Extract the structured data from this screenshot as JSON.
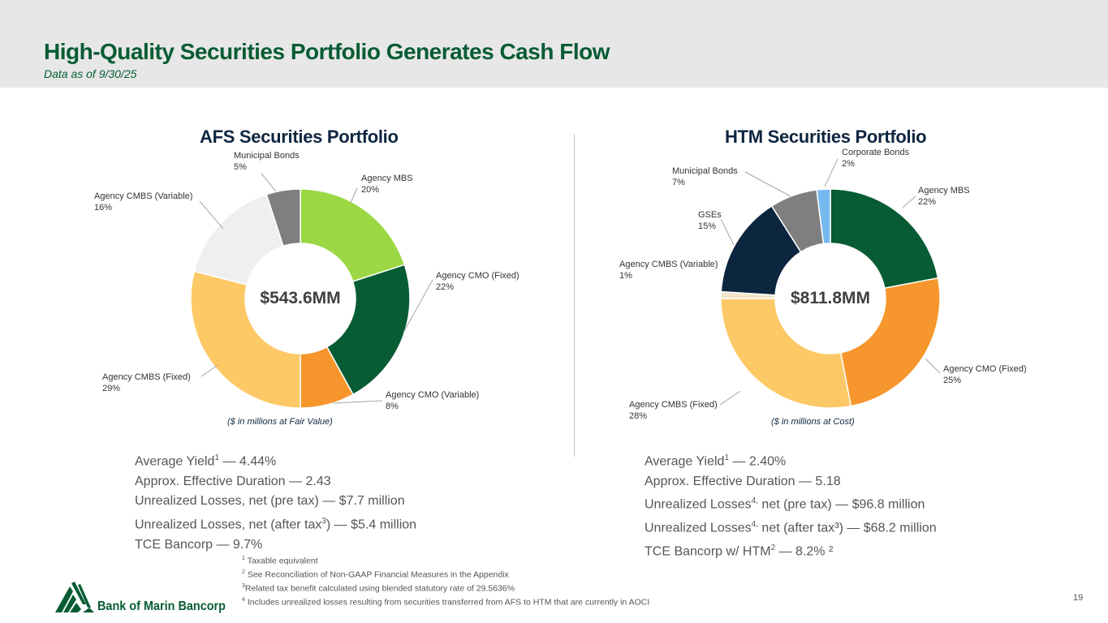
{
  "header": {
    "title": "High-Quality Securities Portfolio Generates Cash Flow",
    "subtitle": "Data as of 9/30/25"
  },
  "chart_data": [
    {
      "type": "pie",
      "title": "AFS Securities Portfolio",
      "center_label": "$543.6MM",
      "note": "($ in millions at Fair Value)",
      "categories": [
        "Agency MBS",
        "Agency CMO (Fixed)",
        "Agency CMO (Variable)",
        "Agency CMBS (Fixed)",
        "Agency CMBS (Variable)",
        "Municipal Bonds"
      ],
      "values": [
        20,
        22,
        8,
        29,
        16,
        5
      ],
      "value_labels": [
        "20%",
        "22%",
        "8%",
        "29%",
        "16%",
        "5%"
      ],
      "colors": [
        "#9bd844",
        "#075c33",
        "#f7962c",
        "#fdc966",
        "#efefef",
        "#7f7f7f"
      ]
    },
    {
      "type": "pie",
      "title": "HTM Securities Portfolio",
      "center_label": "$811.8MM",
      "note": "($ in millions at Cost)",
      "categories": [
        "Agency MBS",
        "Agency CMO (Fixed)",
        "Agency CMBS (Fixed)",
        "Agency CMBS (Variable)",
        "GSEs",
        "Municipal Bonds",
        "Corporate Bonds"
      ],
      "values": [
        22,
        25,
        28,
        1,
        15,
        7,
        2
      ],
      "value_labels": [
        "22%",
        "25%",
        "28%",
        "1%",
        "15%",
        "7%",
        "2%"
      ],
      "colors": [
        "#075c33",
        "#f7962c",
        "#fdc966",
        "#f3e6c9",
        "#0d2640",
        "#7f7f7f",
        "#76b9f0"
      ]
    }
  ],
  "afs_stats": [
    {
      "text": "Average Yield",
      "sup": "1",
      "rest": " — 4.44%"
    },
    {
      "text": "Approx. Effective Duration — 2.43",
      "sup": "",
      "rest": ""
    },
    {
      "text": "Unrealized Losses, net (pre tax) — $7.7 million",
      "sup": "",
      "rest": ""
    },
    {
      "text": "Unrealized Losses, net (after tax",
      "sup": "3",
      "rest": ") — $5.4 million"
    },
    {
      "text": "TCE Bancorp — 9.7%",
      "sup": "",
      "rest": ""
    }
  ],
  "htm_stats": [
    {
      "text": "Average Yield",
      "sup": "1",
      "rest": "  — 2.40%"
    },
    {
      "text": "Approx. Effective Duration — 5.18",
      "sup": "",
      "rest": ""
    },
    {
      "text": "Unrealized Losses",
      "sup": "4,",
      "rest": " net (pre tax) — $96.8 million"
    },
    {
      "text": "Unrealized Losses",
      "sup": "4,",
      "rest": " net (after tax³) — $68.2 million"
    },
    {
      "text": "TCE Bancorp w/ HTM",
      "sup": "2",
      "rest": " — 8.2% ²"
    }
  ],
  "footnotes": [
    {
      "num": "1",
      "text": " Taxable equivalent"
    },
    {
      "num": "2",
      "text": " See Reconciliation of Non-GAAP Financial Measures in the Appendix"
    },
    {
      "num": "3",
      "text": "Related tax benefit calculated using blended statutory rate of 29.5636%"
    },
    {
      "num": "4",
      "text": " Includes unrealized losses resulting from securities transferred from AFS to HTM that are currently in AOCI"
    }
  ],
  "logo": {
    "text": "Bank of Marin Bancorp",
    "color": "#075c33"
  },
  "page_number": "19"
}
